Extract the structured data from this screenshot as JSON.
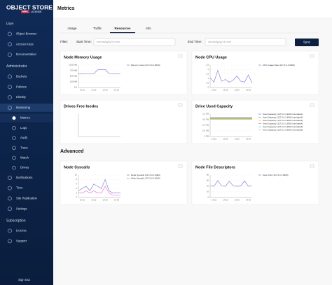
{
  "sidebar": {
    "logo": "OBJECT STORE",
    "logo_badge": "AGPL",
    "logo_sub": "LICENSE",
    "sections": [
      {
        "title": "User",
        "items": [
          {
            "label": "Object Browser"
          },
          {
            "label": "Access Keys"
          },
          {
            "label": "Documentation"
          }
        ]
      },
      {
        "title": "Administrator",
        "items": [
          {
            "label": "Buckets"
          },
          {
            "label": "Policies"
          },
          {
            "label": "Identity"
          },
          {
            "label": "Monitoring",
            "expanded": true,
            "children": [
              {
                "label": "Metrics",
                "selected": true
              },
              {
                "label": "Logs"
              },
              {
                "label": "Audit"
              },
              {
                "label": "Trace"
              },
              {
                "label": "Watch"
              },
              {
                "label": "Drives"
              }
            ]
          },
          {
            "label": "Notifications"
          },
          {
            "label": "Tiers"
          },
          {
            "label": "Site Replication"
          },
          {
            "label": "Settings"
          }
        ]
      },
      {
        "title": "Subscription",
        "items": [
          {
            "label": "License"
          },
          {
            "label": "Support"
          }
        ]
      }
    ],
    "sign_out": "Sign Out"
  },
  "header": {
    "title": "Metrics"
  },
  "tabs": [
    "Usage",
    "Traffic",
    "Resources",
    "Info"
  ],
  "active_tab": 2,
  "filter": {
    "label": "Filter:",
    "start_label": "Start Time:",
    "start_placeholder": "mm/dd/yyyy hh:mm",
    "end_label": "End Time:",
    "end_placeholder": "mm/dd/yyyy hh:mm",
    "button": "Sync"
  },
  "section_title": "Advanced",
  "panels": [
    {
      "title": "Node Memory Usage",
      "x": [
        null,
        "14:10",
        null,
        null,
        "14:20",
        null,
        null,
        "14:30",
        null,
        null,
        "14:40",
        null
      ],
      "ylim": [
        0,
        1000
      ],
      "yticks": [
        {
          "value": 0,
          "label": "0 B"
        },
        {
          "value": 250,
          "label": "250 MiB"
        },
        {
          "value": 500,
          "label": "500 MiB"
        },
        {
          "value": 750,
          "label": "750 MiB"
        },
        {
          "value": 1000,
          "label": "1000 MiB"
        }
      ],
      "series": [
        {
          "name": "Memory Used (127.0.0.1:9000)",
          "color": "#8884d8",
          "values": [
            610,
            612,
            608,
            615,
            610,
            790,
            800,
            805,
            620,
            612,
            610,
            608
          ]
        }
      ]
    },
    {
      "title": "Node CPU Usage",
      "x": [
        null,
        "14:10",
        null,
        null,
        "14:20",
        null,
        null,
        "14:30",
        null,
        null,
        "14:40",
        null
      ],
      "ylim": [
        0,
        2.5
      ],
      "yticks": [
        0,
        0.5,
        1,
        1.5,
        2,
        2.5
      ],
      "series": [
        {
          "name": "CPU Usage Rate (127.0.0.1:9000)",
          "color": "#8884d8",
          "values": [
            1.1,
            0.6,
            1.9,
            0.7,
            0.9,
            0.6,
            0.8,
            1.3,
            0.7,
            0.6,
            1.4,
            0.5
          ]
        }
      ]
    },
    {
      "title": "Drives Free Inodes",
      "x": [],
      "ylim": [
        0,
        1
      ],
      "yticks": [],
      "series": []
    },
    {
      "title": "Drive Used Capacity",
      "x": [
        null,
        "14:10",
        null,
        null,
        "14:20",
        null,
        null,
        "14:30",
        null,
        null,
        "14:40",
        null
      ],
      "ylim": [
        0,
        1.2
      ],
      "yticks": [
        {
          "value": 0,
          "label": "0 TiB"
        },
        {
          "value": 0.3,
          "label": "0.3 TiB"
        },
        {
          "value": 0.6,
          "label": "0.6 TiB"
        },
        {
          "value": 0.9,
          "label": "0.9 TiB"
        },
        {
          "value": 1.2,
          "label": "1.2 TiB"
        }
      ],
      "series": [
        {
          "name": "Used Capacity (127.0.0.1:9000 /mnt/data1)",
          "color": "#8884d8",
          "values": [
            1.02,
            1.02,
            1.02,
            1.02,
            1.02,
            1.02,
            1.02,
            1.02,
            1.02,
            1.02,
            1.02,
            1.02
          ]
        },
        {
          "name": "Used Capacity (127.0.0.1:9000 /mnt/data2)",
          "color": "#82ca9d",
          "values": [
            1.0,
            1.0,
            1.0,
            1.0,
            1.0,
            1.0,
            1.0,
            1.0,
            1.0,
            1.0,
            1.0,
            1.0
          ]
        },
        {
          "name": "Used Capacity (127.0.0.1:9000 /mnt/data3)",
          "color": "#ffc658",
          "values": [
            0.98,
            0.98,
            0.98,
            0.98,
            0.98,
            0.98,
            0.98,
            0.98,
            0.98,
            0.98,
            0.98,
            0.98
          ]
        },
        {
          "name": "Used Capacity (127.0.0.1:9000 /mnt/data4)",
          "color": "#ff7f50",
          "values": [
            0.96,
            0.96,
            0.96,
            0.96,
            0.96,
            0.96,
            0.96,
            0.96,
            0.96,
            0.96,
            0.96,
            0.96
          ]
        },
        {
          "name": "Used Capacity (127.0.0.1:9000 /mnt/data5)",
          "color": "#8dd1e1",
          "values": [
            0.94,
            0.94,
            0.94,
            0.94,
            0.94,
            0.94,
            0.94,
            0.94,
            0.94,
            0.94,
            0.94,
            0.94
          ]
        },
        {
          "name": "Used Capacity (127.0.0.1:9000 /mnt/data6)",
          "color": "#a4de6c",
          "values": [
            0.92,
            0.92,
            0.92,
            0.92,
            0.92,
            0.92,
            0.92,
            0.92,
            0.92,
            0.92,
            0.92,
            0.92
          ]
        }
      ]
    },
    {
      "title": "Node Syscalls",
      "x": [
        null,
        "14:10",
        null,
        null,
        "14:20",
        null,
        null,
        "14:30",
        null,
        null,
        "14:40",
        null
      ],
      "ylim": [
        0,
        10
      ],
      "yticks": [
        0,
        2,
        4,
        6,
        8,
        10
      ],
      "series": [
        {
          "name": "Read Syscalls (127.0.0.1:9000)",
          "color": "#8884d8",
          "values": [
            3,
            4,
            5,
            3,
            6,
            5,
            4,
            8,
            3,
            2,
            2,
            2
          ]
        },
        {
          "name": "Write Syscalls (127.0.0.1:9000)",
          "color": "#e67fd9",
          "values": [
            2,
            2,
            3,
            2,
            3,
            2,
            2,
            5,
            2,
            1,
            1,
            1
          ]
        }
      ]
    },
    {
      "title": "Node File Descriptors",
      "x": [
        null,
        "14:10",
        null,
        null,
        "14:20",
        null,
        null,
        "14:30",
        null,
        null,
        "14:40",
        null
      ],
      "ylim": [
        0,
        80
      ],
      "yticks": [
        0,
        20,
        40,
        60,
        80
      ],
      "series": [
        {
          "name": "Open FDs (127.0.0.1:9000)",
          "color": "#8884d8",
          "values": [
            42,
            40,
            60,
            41,
            40,
            58,
            42,
            40,
            41,
            59,
            40,
            42
          ]
        }
      ]
    }
  ]
}
